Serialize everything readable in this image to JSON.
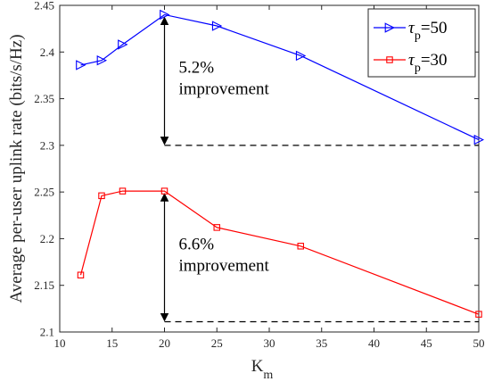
{
  "chart_data": {
    "type": "line",
    "xlabel": {
      "main": "K",
      "sub": "m"
    },
    "ylabel": "Average per-user uplink rate (bits/s/Hz)",
    "xlim": [
      10,
      50
    ],
    "ylim": [
      2.1,
      2.45
    ],
    "xticks": [
      "10",
      "15",
      "20",
      "25",
      "30",
      "35",
      "40",
      "45",
      "50"
    ],
    "yticks": [
      "2.1",
      "2.15",
      "2.2",
      "2.25",
      "2.3",
      "2.35",
      "2.4",
      "2.45"
    ],
    "grid": false,
    "legend_position": "top-right",
    "series": [
      {
        "name": "τp=50",
        "legend": {
          "symbol": "τ",
          "sub": "p",
          "value": "=50"
        },
        "color": "#0000ff",
        "marker": "triangle-right",
        "x": [
          12,
          14,
          16,
          20,
          25,
          33,
          50
        ],
        "y": [
          2.386,
          2.391,
          2.408,
          2.44,
          2.428,
          2.396,
          2.306
        ]
      },
      {
        "name": "τp=30",
        "legend": {
          "symbol": "τ",
          "sub": "p",
          "value": "=30"
        },
        "color": "#ff0000",
        "marker": "square",
        "x": [
          12,
          14,
          16,
          20,
          25,
          33,
          50
        ],
        "y": [
          2.161,
          2.246,
          2.251,
          2.251,
          2.212,
          2.192,
          2.119
        ]
      }
    ],
    "annotations": [
      {
        "text_line1": "5.2%",
        "text_line2": "improvement",
        "arrow_x": 20,
        "arrow_y_top": 2.44,
        "arrow_y_bottom": 2.3,
        "ref_line_y": 2.3,
        "ref_line_x": [
          20,
          50
        ]
      },
      {
        "text_line1": "6.6%",
        "text_line2": "improvement",
        "arrow_x": 20,
        "arrow_y_top": 2.251,
        "arrow_y_bottom": 2.111,
        "ref_line_y": 2.111,
        "ref_line_x": [
          20,
          50
        ]
      }
    ]
  }
}
